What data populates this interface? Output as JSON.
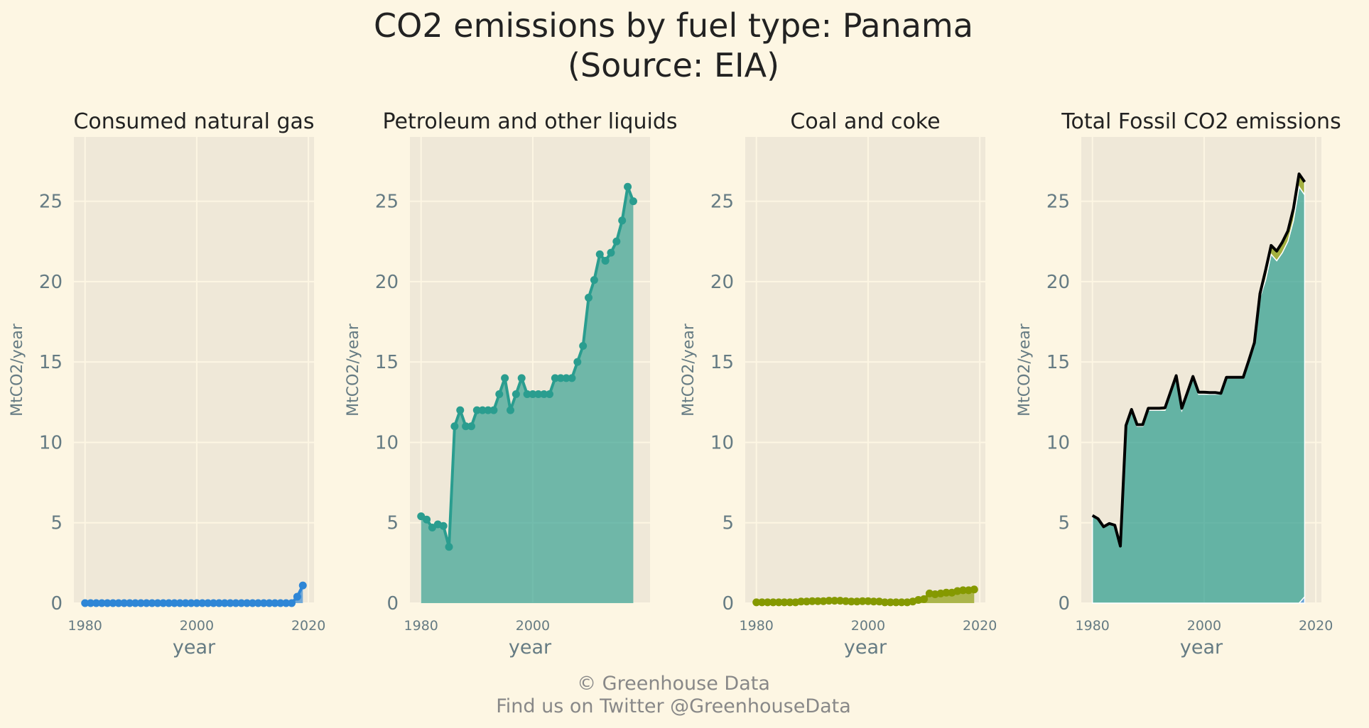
{
  "title_line1": "CO2 emissions by fuel type: Panama",
  "title_line2": "(Source: EIA)",
  "footer_line1": "© Greenhouse Data",
  "footer_line2": "Find us on Twitter @GreenhouseData",
  "colors": {
    "background": "#fdf6e3",
    "axes_bg": "#efe8d8",
    "natural_gas": "#2e86d6",
    "petroleum": "#2a9d8f",
    "coal": "#859900",
    "total_line": "#000000"
  },
  "chart_data": [
    {
      "type": "area",
      "title": "Consumed natural gas",
      "xlabel": "year",
      "ylabel": "MtCO2/year",
      "xlim": [
        1978,
        2021
      ],
      "ylim": [
        0,
        29
      ],
      "xticks": [
        1980,
        2000,
        2020
      ],
      "yticks": [
        0,
        5,
        10,
        15,
        20,
        25
      ],
      "grid": true,
      "markers": true,
      "series": [
        {
          "color": "#2e86d6",
          "x": [
            1980,
            1981,
            1982,
            1983,
            1984,
            1985,
            1986,
            1987,
            1988,
            1989,
            1990,
            1991,
            1992,
            1993,
            1994,
            1995,
            1996,
            1997,
            1998,
            1999,
            2000,
            2001,
            2002,
            2003,
            2004,
            2005,
            2006,
            2007,
            2008,
            2009,
            2010,
            2011,
            2012,
            2013,
            2014,
            2015,
            2016,
            2017,
            2018,
            2019
          ],
          "values": [
            0,
            0,
            0,
            0,
            0,
            0,
            0,
            0,
            0,
            0,
            0,
            0,
            0,
            0,
            0,
            0,
            0,
            0,
            0,
            0,
            0,
            0,
            0,
            0,
            0,
            0,
            0,
            0,
            0,
            0,
            0,
            0,
            0,
            0,
            0,
            0,
            0,
            0,
            0.4,
            1.1
          ]
        }
      ]
    },
    {
      "type": "area",
      "title": "Petroleum and other liquids",
      "xlabel": "year",
      "ylabel": "MtCO2/year",
      "xlim": [
        1978,
        2021
      ],
      "ylim": [
        0,
        29
      ],
      "xticks": [
        1980,
        2000
      ],
      "yticks": [
        0,
        5,
        10,
        15,
        20,
        25
      ],
      "grid": true,
      "markers": true,
      "series": [
        {
          "color": "#2a9d8f",
          "x": [
            1980,
            1981,
            1982,
            1983,
            1984,
            1985,
            1986,
            1987,
            1988,
            1989,
            1990,
            1991,
            1992,
            1993,
            1994,
            1995,
            1996,
            1997,
            1998,
            1999,
            2000,
            2001,
            2002,
            2003,
            2004,
            2005,
            2006,
            2007,
            2008,
            2009,
            2010,
            2011,
            2012,
            2013,
            2014,
            2015,
            2016,
            2017,
            2018
          ],
          "values": [
            5.4,
            5.2,
            4.7,
            4.9,
            4.8,
            3.5,
            11.0,
            12.0,
            11.0,
            11.0,
            12.0,
            12.0,
            12.0,
            12.0,
            13.0,
            14.0,
            12.0,
            13.0,
            14.0,
            13.0,
            13.0,
            13.0,
            13.0,
            13.0,
            14.0,
            14.0,
            14.0,
            14.0,
            15.0,
            16.0,
            19.0,
            20.1,
            21.7,
            21.3,
            21.8,
            22.5,
            23.8,
            25.9,
            25.0
          ]
        }
      ]
    },
    {
      "type": "area",
      "title": "Coal and coke",
      "xlabel": "year",
      "ylabel": "MtCO2/year",
      "xlim": [
        1978,
        2021
      ],
      "ylim": [
        0,
        29
      ],
      "xticks": [
        1980,
        2000,
        2020
      ],
      "yticks": [
        0,
        5,
        10,
        15,
        20,
        25
      ],
      "grid": true,
      "markers": true,
      "series": [
        {
          "color": "#859900",
          "x": [
            1980,
            1981,
            1982,
            1983,
            1984,
            1985,
            1986,
            1987,
            1988,
            1989,
            1990,
            1991,
            1992,
            1993,
            1994,
            1995,
            1996,
            1997,
            1998,
            1999,
            2000,
            2001,
            2002,
            2003,
            2004,
            2005,
            2006,
            2007,
            2008,
            2009,
            2010,
            2011,
            2012,
            2013,
            2014,
            2015,
            2016,
            2017,
            2018,
            2019
          ],
          "values": [
            0.05,
            0.05,
            0.05,
            0.05,
            0.05,
            0.05,
            0.05,
            0.05,
            0.1,
            0.1,
            0.12,
            0.12,
            0.12,
            0.15,
            0.15,
            0.15,
            0.12,
            0.1,
            0.1,
            0.12,
            0.12,
            0.1,
            0.1,
            0.05,
            0.05,
            0.05,
            0.05,
            0.05,
            0.1,
            0.2,
            0.25,
            0.6,
            0.55,
            0.6,
            0.65,
            0.65,
            0.75,
            0.8,
            0.8,
            0.85
          ]
        }
      ]
    },
    {
      "type": "area",
      "title": "Total Fossil CO2 emissions",
      "xlabel": "year",
      "ylabel": "MtCO2/year",
      "xlim": [
        1978,
        2021
      ],
      "ylim": [
        0,
        29
      ],
      "xticks": [
        1980,
        2000,
        2020
      ],
      "yticks": [
        0,
        5,
        10,
        15,
        20,
        25
      ],
      "grid": true,
      "stacked": true,
      "x": [
        1980,
        1981,
        1982,
        1983,
        1984,
        1985,
        1986,
        1987,
        1988,
        1989,
        1990,
        1991,
        1992,
        1993,
        1994,
        1995,
        1996,
        1997,
        1998,
        1999,
        2000,
        2001,
        2002,
        2003,
        2004,
        2005,
        2006,
        2007,
        2008,
        2009,
        2010,
        2011,
        2012,
        2013,
        2014,
        2015,
        2016,
        2017,
        2018
      ],
      "series": [
        {
          "color": "#2e86d6",
          "values": [
            0,
            0,
            0,
            0,
            0,
            0,
            0,
            0,
            0,
            0,
            0,
            0,
            0,
            0,
            0,
            0,
            0,
            0,
            0,
            0,
            0,
            0,
            0,
            0,
            0,
            0,
            0,
            0,
            0,
            0,
            0,
            0,
            0,
            0,
            0,
            0,
            0,
            0,
            0.4
          ]
        },
        {
          "color": "#2a9d8f",
          "values": [
            5.4,
            5.2,
            4.7,
            4.9,
            4.8,
            3.5,
            11.0,
            12.0,
            11.0,
            11.0,
            12.0,
            12.0,
            12.0,
            12.0,
            13.0,
            14.0,
            12.0,
            13.0,
            14.0,
            13.0,
            13.0,
            13.0,
            13.0,
            13.0,
            14.0,
            14.0,
            14.0,
            14.0,
            15.0,
            16.0,
            19.0,
            20.1,
            21.7,
            21.3,
            21.8,
            22.5,
            23.8,
            25.9,
            25.0
          ]
        },
        {
          "color": "#859900",
          "values": [
            0.05,
            0.05,
            0.05,
            0.05,
            0.05,
            0.05,
            0.05,
            0.05,
            0.1,
            0.1,
            0.12,
            0.12,
            0.12,
            0.15,
            0.15,
            0.15,
            0.12,
            0.1,
            0.1,
            0.12,
            0.12,
            0.1,
            0.1,
            0.05,
            0.05,
            0.05,
            0.05,
            0.05,
            0.1,
            0.2,
            0.25,
            0.6,
            0.55,
            0.6,
            0.65,
            0.65,
            0.75,
            0.8,
            0.8
          ]
        }
      ],
      "total_line": {
        "color": "#000000",
        "values": [
          5.45,
          5.25,
          4.75,
          4.95,
          4.85,
          3.55,
          11.05,
          12.05,
          11.1,
          11.1,
          12.12,
          12.12,
          12.12,
          12.15,
          13.15,
          14.15,
          12.12,
          13.1,
          14.1,
          13.12,
          13.12,
          13.1,
          13.1,
          13.05,
          14.05,
          14.05,
          14.05,
          14.05,
          15.1,
          16.2,
          19.25,
          20.7,
          22.25,
          21.9,
          22.45,
          23.15,
          24.55,
          26.7,
          26.2
        ]
      }
    }
  ]
}
